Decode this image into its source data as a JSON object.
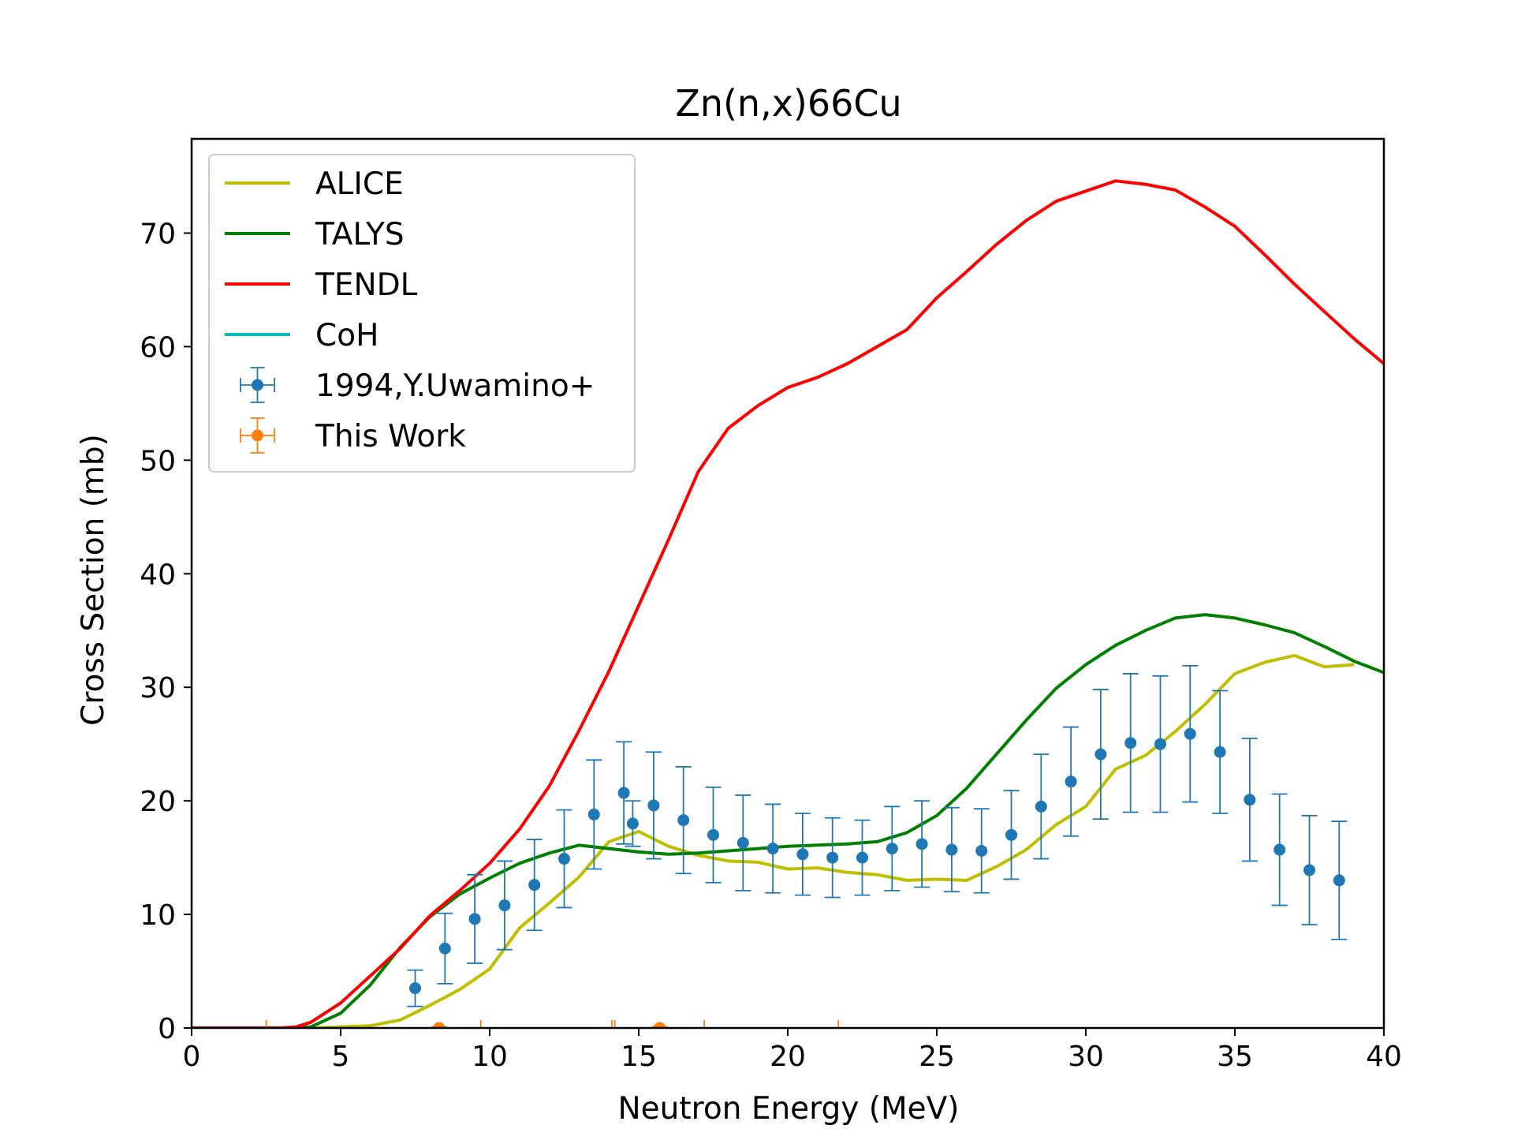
{
  "chart_data": {
    "type": "line",
    "title": "Zn(n,x)66Cu",
    "xlabel": "Neutron Energy (MeV)",
    "ylabel": "Cross Section (mb)",
    "xlim": [
      0,
      40
    ],
    "ylim": [
      0,
      78.3
    ],
    "xticks": [
      0,
      5,
      10,
      15,
      20,
      25,
      30,
      35,
      40
    ],
    "yticks": [
      0,
      10,
      20,
      30,
      40,
      50,
      60,
      70
    ],
    "grid": false,
    "legend_position": "top-left",
    "series": [
      {
        "name": "ALICE",
        "style": "line",
        "color": "#bfbf00",
        "points": [
          [
            0,
            0
          ],
          [
            2,
            0
          ],
          [
            4,
            0
          ],
          [
            5,
            0.1
          ],
          [
            6,
            0.2
          ],
          [
            7,
            0.7
          ],
          [
            8,
            2
          ],
          [
            9,
            3.4
          ],
          [
            10,
            5.2
          ],
          [
            11,
            8.8
          ],
          [
            12,
            11
          ],
          [
            13,
            13.3
          ],
          [
            14,
            16.4
          ],
          [
            15,
            17.3
          ],
          [
            16,
            16
          ],
          [
            17,
            15.2
          ],
          [
            18,
            14.7
          ],
          [
            19,
            14.6
          ],
          [
            20,
            14
          ],
          [
            21,
            14.1
          ],
          [
            22,
            13.7
          ],
          [
            23,
            13.5
          ],
          [
            24,
            13
          ],
          [
            25,
            13.1
          ],
          [
            26,
            13
          ],
          [
            27,
            14.2
          ],
          [
            28,
            15.7
          ],
          [
            29,
            17.9
          ],
          [
            30,
            19.5
          ],
          [
            31,
            22.8
          ],
          [
            32,
            24
          ],
          [
            33,
            26.1
          ],
          [
            34,
            28.5
          ],
          [
            35,
            31.2
          ],
          [
            36,
            32.2
          ],
          [
            37,
            32.8
          ],
          [
            38,
            31.8
          ],
          [
            39,
            32
          ]
        ]
      },
      {
        "name": "TALYS",
        "style": "line",
        "color": "#008000",
        "points": [
          [
            0,
            0
          ],
          [
            3,
            0
          ],
          [
            4,
            0.1
          ],
          [
            5,
            1.3
          ],
          [
            6,
            3.8
          ],
          [
            7,
            7.1
          ],
          [
            8,
            9.8
          ],
          [
            9,
            11.8
          ],
          [
            10,
            13.2
          ],
          [
            11,
            14.5
          ],
          [
            12,
            15.4
          ],
          [
            13,
            16.1
          ],
          [
            14,
            15.8
          ],
          [
            15,
            15.5
          ],
          [
            16,
            15.3
          ],
          [
            17,
            15.4
          ],
          [
            18,
            15.6
          ],
          [
            19,
            15.8
          ],
          [
            20,
            16
          ],
          [
            21,
            16.1
          ],
          [
            22,
            16.2
          ],
          [
            23,
            16.4
          ],
          [
            24,
            17.2
          ],
          [
            25,
            18.7
          ],
          [
            26,
            21.1
          ],
          [
            27,
            24.1
          ],
          [
            28,
            27.1
          ],
          [
            29,
            29.9
          ],
          [
            30,
            32
          ],
          [
            31,
            33.7
          ],
          [
            32,
            35
          ],
          [
            33,
            36.1
          ],
          [
            34,
            36.4
          ],
          [
            35,
            36.1
          ],
          [
            36,
            35.5
          ],
          [
            37,
            34.8
          ],
          [
            38,
            33.6
          ],
          [
            39,
            32.3
          ],
          [
            40,
            31.3
          ]
        ]
      },
      {
        "name": "TENDL",
        "style": "line",
        "color": "#ff0000",
        "points": [
          [
            0,
            0
          ],
          [
            3,
            0
          ],
          [
            3.5,
            0.1
          ],
          [
            4,
            0.5
          ],
          [
            5,
            2.2
          ],
          [
            6,
            4.6
          ],
          [
            7,
            7
          ],
          [
            8,
            9.9
          ],
          [
            9,
            12.1
          ],
          [
            10,
            14.5
          ],
          [
            11,
            17.5
          ],
          [
            12,
            21.3
          ],
          [
            13,
            26.2
          ],
          [
            14,
            31.4
          ],
          [
            15,
            37.2
          ],
          [
            16,
            43
          ],
          [
            17,
            49
          ],
          [
            18,
            52.8
          ],
          [
            19,
            54.8
          ],
          [
            20,
            56.4
          ],
          [
            21,
            57.3
          ],
          [
            22,
            58.5
          ],
          [
            23,
            60
          ],
          [
            24,
            61.5
          ],
          [
            25,
            64.3
          ],
          [
            26,
            66.6
          ],
          [
            27,
            69
          ],
          [
            28,
            71.1
          ],
          [
            29,
            72.8
          ],
          [
            30,
            73.7
          ],
          [
            31,
            74.6
          ],
          [
            32,
            74.3
          ],
          [
            33,
            73.8
          ],
          [
            34,
            72.3
          ],
          [
            35,
            70.6
          ],
          [
            36,
            68.1
          ],
          [
            37,
            65.5
          ],
          [
            38,
            63.1
          ],
          [
            39,
            60.7
          ],
          [
            40,
            58.5
          ]
        ]
      },
      {
        "name": "CoH",
        "style": "line",
        "color": "#00bfbf",
        "points": []
      },
      {
        "name": "1994,Y.Uwamino+",
        "style": "errorbar",
        "color": "#1f77b4",
        "points": [
          {
            "x": 7.5,
            "y": 3.5,
            "yerr": 1.6
          },
          {
            "x": 8.5,
            "y": 7,
            "yerr": 3.1
          },
          {
            "x": 9.5,
            "y": 9.6,
            "yerr": 3.9
          },
          {
            "x": 10.5,
            "y": 10.8,
            "yerr": 3.9
          },
          {
            "x": 11.5,
            "y": 12.6,
            "yerr": 4.0
          },
          {
            "x": 12.5,
            "y": 14.9,
            "yerr": 4.3
          },
          {
            "x": 13.5,
            "y": 18.8,
            "yerr": 4.8
          },
          {
            "x": 14.5,
            "y": 20.7,
            "yerr": 4.5
          },
          {
            "x": 14.8,
            "y": 18,
            "yerr": 2.0
          },
          {
            "x": 15.5,
            "y": 19.6,
            "yerr": 4.7
          },
          {
            "x": 16.5,
            "y": 18.3,
            "yerr": 4.7
          },
          {
            "x": 17.5,
            "y": 17,
            "yerr": 4.2
          },
          {
            "x": 18.5,
            "y": 16.3,
            "yerr": 4.2
          },
          {
            "x": 19.5,
            "y": 15.8,
            "yerr": 3.9
          },
          {
            "x": 20.5,
            "y": 15.3,
            "yerr": 3.6
          },
          {
            "x": 21.5,
            "y": 15,
            "yerr": 3.5
          },
          {
            "x": 22.5,
            "y": 15,
            "yerr": 3.3
          },
          {
            "x": 23.5,
            "y": 15.8,
            "yerr": 3.7
          },
          {
            "x": 24.5,
            "y": 16.2,
            "yerr": 3.8
          },
          {
            "x": 25.5,
            "y": 15.7,
            "yerr": 3.7
          },
          {
            "x": 26.5,
            "y": 15.6,
            "yerr": 3.7
          },
          {
            "x": 27.5,
            "y": 17,
            "yerr": 3.9
          },
          {
            "x": 28.5,
            "y": 19.5,
            "yerr": 4.6
          },
          {
            "x": 29.5,
            "y": 21.7,
            "yerr": 4.8
          },
          {
            "x": 30.5,
            "y": 24.1,
            "yerr": 5.7
          },
          {
            "x": 31.5,
            "y": 25.1,
            "yerr": 6.1
          },
          {
            "x": 32.5,
            "y": 25,
            "yerr": 6.0
          },
          {
            "x": 33.5,
            "y": 25.9,
            "yerr": 6.0
          },
          {
            "x": 34.5,
            "y": 24.3,
            "yerr": 5.4
          },
          {
            "x": 35.5,
            "y": 20.1,
            "yerr": 5.4
          },
          {
            "x": 36.5,
            "y": 15.7,
            "yerr": 4.9
          },
          {
            "x": 37.5,
            "y": 13.9,
            "yerr": 4.8
          },
          {
            "x": 38.5,
            "y": 13,
            "yerr": 5.2
          }
        ]
      },
      {
        "name": "This Work",
        "style": "errorbar",
        "color": "#ff7f0e",
        "points": [
          {
            "x": 8.3,
            "y": 0,
            "xerr": 5.8,
            "yerr": 0.1
          },
          {
            "x": 15.7,
            "y": 0,
            "xerr": 1.5,
            "yerr": 0.1
          },
          {
            "x": 15.7,
            "y": 0,
            "xerr": 6.0,
            "yerr": 0.1
          }
        ]
      }
    ]
  }
}
